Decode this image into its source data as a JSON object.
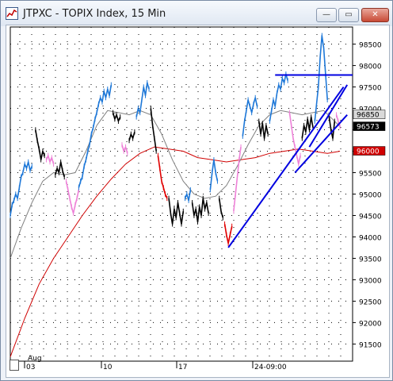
{
  "window": {
    "title": "JTPXC - TOPIX Index, 15 Min",
    "buttons": {
      "minimize": "—",
      "maximize": "▭",
      "close": "✕"
    }
  },
  "chart_data": {
    "type": "line",
    "symbol": "JTPXC",
    "ylim": [
      91100,
      98900
    ],
    "y_ticks": [
      98500,
      98000,
      97500,
      97000,
      96500,
      96000,
      95500,
      95000,
      94500,
      94000,
      93500,
      93000,
      92500,
      92000,
      91500
    ],
    "y_tick_labels": [
      "98500",
      "98000",
      "97500",
      "97000",
      "",
      "",
      "95500",
      "95000",
      "94500",
      "94000",
      "93500",
      "93000",
      "92500",
      "92000",
      "91500"
    ],
    "x_labels": [
      "Aug",
      "03",
      "10",
      "17",
      "24-09:00"
    ],
    "price_tags": [
      {
        "label": "96850",
        "value": 96850,
        "bg": "#d9d9d9",
        "fg": "#000000"
      },
      {
        "label": "96573",
        "value": 96573,
        "bg": "#000000",
        "fg": "#ffffff"
      },
      {
        "label": "96000",
        "value": 96000,
        "bg": "#d00000",
        "fg": "#ffffff"
      }
    ],
    "grid": true,
    "colors": {
      "up": "#1e78d8",
      "down": "#000000",
      "pink": "#ee82d8",
      "red": "#e00000",
      "gray_ma": "#808080",
      "red_ma": "#d00000",
      "trendline": "#0000e0"
    },
    "series": [
      {
        "color": "up",
        "values": [
          [
            0,
            94500
          ],
          [
            0.5,
            94750
          ],
          [
            1,
            94850
          ],
          [
            1.5,
            95000
          ],
          [
            2,
            94900
          ],
          [
            2.5,
            95150
          ],
          [
            3,
            95400
          ],
          [
            3.5,
            95500
          ],
          [
            4,
            95700
          ],
          [
            4.5,
            95600
          ],
          [
            5,
            95750
          ],
          [
            5.5,
            95550
          ],
          [
            6,
            95650
          ]
        ]
      },
      {
        "color": "down",
        "values": [
          [
            7,
            96500
          ],
          [
            7.5,
            96250
          ],
          [
            8,
            96050
          ],
          [
            8.5,
            95800
          ],
          [
            9,
            96000
          ],
          [
            9.5,
            95900
          ]
        ]
      },
      {
        "color": "pink",
        "values": [
          [
            10,
            95800
          ],
          [
            10.5,
            95900
          ],
          [
            11,
            95750
          ],
          [
            11.5,
            95850
          ],
          [
            12,
            95700
          ]
        ]
      },
      {
        "color": "down",
        "values": [
          [
            12.5,
            95450
          ],
          [
            13,
            95600
          ],
          [
            13.5,
            95500
          ],
          [
            14,
            95750
          ],
          [
            14.5,
            95550
          ],
          [
            15,
            95400
          ]
        ]
      },
      {
        "color": "pink",
        "values": [
          [
            15.5,
            95300
          ],
          [
            16,
            95100
          ],
          [
            16.5,
            94900
          ],
          [
            17,
            94700
          ],
          [
            17.5,
            94550
          ],
          [
            18,
            94750
          ],
          [
            18.5,
            94900
          ],
          [
            19,
            95100
          ]
        ]
      },
      {
        "color": "up",
        "values": [
          [
            19,
            95150
          ],
          [
            19.5,
            95300
          ],
          [
            20,
            95400
          ],
          [
            20.5,
            95650
          ],
          [
            21,
            95800
          ],
          [
            21.5,
            96000
          ],
          [
            22,
            96150
          ],
          [
            22.5,
            96400
          ],
          [
            23,
            96550
          ],
          [
            23.5,
            96750
          ],
          [
            24,
            96900
          ],
          [
            24.5,
            97100
          ],
          [
            25,
            97250
          ],
          [
            25.5,
            97150
          ],
          [
            26,
            97400
          ],
          [
            26.5,
            97250
          ],
          [
            27,
            97450
          ],
          [
            27.5,
            97300
          ],
          [
            28,
            97550
          ]
        ]
      },
      {
        "color": "down",
        "values": [
          [
            28.5,
            96900
          ],
          [
            29,
            96750
          ],
          [
            29.5,
            96850
          ],
          [
            30,
            96700
          ],
          [
            30.5,
            96800
          ]
        ]
      },
      {
        "color": "pink",
        "values": [
          [
            31,
            96150
          ],
          [
            31.5,
            96000
          ],
          [
            32,
            96100
          ],
          [
            32.5,
            95950
          ]
        ]
      },
      {
        "color": "down",
        "values": [
          [
            33,
            96250
          ],
          [
            33.5,
            96400
          ],
          [
            34,
            96300
          ],
          [
            34.5,
            96450
          ]
        ]
      },
      {
        "color": "up",
        "values": [
          [
            35,
            96800
          ],
          [
            35.5,
            97000
          ],
          [
            36,
            96900
          ],
          [
            36.5,
            97200
          ],
          [
            37,
            97500
          ],
          [
            37.5,
            97300
          ],
          [
            38,
            97600
          ],
          [
            38.5,
            97450
          ]
        ]
      },
      {
        "color": "down",
        "values": [
          [
            39,
            97000
          ],
          [
            39.5,
            96600
          ],
          [
            40,
            96300
          ],
          [
            40.5,
            96000
          ]
        ]
      },
      {
        "color": "red",
        "values": [
          [
            41,
            95900
          ],
          [
            41.5,
            95600
          ],
          [
            42,
            95300
          ],
          [
            42.5,
            95150
          ],
          [
            43,
            95000
          ],
          [
            43.5,
            94900
          ]
        ]
      },
      {
        "color": "down",
        "values": [
          [
            44,
            94900
          ],
          [
            44.5,
            94550
          ],
          [
            45,
            94300
          ],
          [
            45.5,
            94650
          ],
          [
            46,
            94450
          ],
          [
            46.5,
            94800
          ],
          [
            47,
            94550
          ],
          [
            47.5,
            94300
          ],
          [
            48,
            94600
          ]
        ]
      },
      {
        "color": "up",
        "values": [
          [
            48.5,
            94900
          ],
          [
            49,
            95000
          ],
          [
            49.5,
            94850
          ],
          [
            50,
            95100
          ]
        ]
      },
      {
        "color": "down",
        "values": [
          [
            50.5,
            94800
          ],
          [
            51,
            94500
          ],
          [
            51.5,
            94650
          ],
          [
            52,
            94350
          ],
          [
            52.5,
            94700
          ],
          [
            53,
            94500
          ],
          [
            53.5,
            94900
          ],
          [
            54,
            94650
          ],
          [
            54.5,
            94800
          ],
          [
            55,
            94550
          ]
        ]
      },
      {
        "color": "up",
        "values": [
          [
            55.5,
            95100
          ],
          [
            56,
            95500
          ],
          [
            56.5,
            95800
          ],
          [
            57,
            95500
          ],
          [
            57.5,
            95300
          ]
        ]
      },
      {
        "color": "down",
        "values": [
          [
            58,
            94900
          ],
          [
            58.5,
            94600
          ],
          [
            59,
            94450
          ]
        ]
      },
      {
        "color": "red",
        "values": [
          [
            59.5,
            94300
          ],
          [
            60,
            94050
          ],
          [
            60.5,
            93850
          ],
          [
            61,
            94050
          ],
          [
            61.5,
            94250
          ]
        ]
      },
      {
        "color": "pink",
        "values": [
          [
            62,
            94600
          ],
          [
            62.5,
            95000
          ],
          [
            63,
            95400
          ],
          [
            63.5,
            95800
          ],
          [
            64,
            96100
          ]
        ]
      },
      {
        "color": "up",
        "values": [
          [
            64.5,
            96350
          ],
          [
            65,
            96700
          ],
          [
            65.5,
            96950
          ],
          [
            66,
            97200
          ],
          [
            66.5,
            97050
          ],
          [
            67,
            96900
          ],
          [
            67.5,
            97100
          ],
          [
            68,
            97250
          ],
          [
            68.5,
            97050
          ]
        ]
      },
      {
        "color": "down",
        "values": [
          [
            69,
            96700
          ],
          [
            69.5,
            96400
          ],
          [
            70,
            96650
          ],
          [
            70.5,
            96300
          ],
          [
            71,
            96600
          ],
          [
            71.5,
            96400
          ]
        ]
      },
      {
        "color": "up",
        "values": [
          [
            72,
            96700
          ],
          [
            72.5,
            96950
          ],
          [
            73,
            97200
          ],
          [
            73.5,
            97050
          ],
          [
            74,
            97350
          ],
          [
            74.5,
            97550
          ],
          [
            75,
            97450
          ],
          [
            75.5,
            97700
          ],
          [
            76,
            97600
          ],
          [
            76.5,
            97800
          ],
          [
            77,
            97650
          ]
        ]
      },
      {
        "color": "pink",
        "values": [
          [
            77.5,
            96900
          ],
          [
            78,
            96600
          ],
          [
            78.5,
            96300
          ],
          [
            79,
            96100
          ],
          [
            79.5,
            95900
          ],
          [
            80,
            95700
          ],
          [
            80.5,
            95900
          ]
        ]
      },
      {
        "color": "down",
        "values": [
          [
            81,
            96300
          ],
          [
            81.5,
            96600
          ],
          [
            82,
            96450
          ],
          [
            82.5,
            96750
          ],
          [
            83,
            96500
          ],
          [
            83.5,
            96800
          ],
          [
            84,
            96550
          ]
        ]
      },
      {
        "color": "up",
        "values": [
          [
            84.5,
            96700
          ],
          [
            85,
            97100
          ],
          [
            85.5,
            97500
          ],
          [
            86,
            98200
          ],
          [
            86.5,
            98700
          ],
          [
            87,
            98400
          ],
          [
            87.5,
            97800
          ],
          [
            88,
            97200
          ]
        ]
      },
      {
        "color": "down",
        "values": [
          [
            88.5,
            96800
          ],
          [
            89,
            96500
          ],
          [
            89.5,
            96300
          ],
          [
            90,
            96700
          ]
        ]
      },
      {
        "color": "pink",
        "values": [
          [
            90.5,
            96850
          ],
          [
            91,
            96700
          ],
          [
            91.5,
            96573
          ]
        ]
      }
    ],
    "gray_ma": [
      [
        0,
        93500
      ],
      [
        3,
        94200
      ],
      [
        6,
        94800
      ],
      [
        9,
        95300
      ],
      [
        12,
        95500
      ],
      [
        15,
        95450
      ],
      [
        18,
        95500
      ],
      [
        21,
        96000
      ],
      [
        24,
        96600
      ],
      [
        27,
        96950
      ],
      [
        30,
        96900
      ],
      [
        33,
        96850
      ],
      [
        36,
        96950
      ],
      [
        39,
        96850
      ],
      [
        42,
        96400
      ],
      [
        45,
        95800
      ],
      [
        48,
        95300
      ],
      [
        51,
        95000
      ],
      [
        54,
        94900
      ],
      [
        57,
        94950
      ],
      [
        60,
        95200
      ],
      [
        63,
        95650
      ],
      [
        66,
        96150
      ],
      [
        69,
        96600
      ],
      [
        72,
        96850
      ],
      [
        75,
        96950
      ],
      [
        78,
        96900
      ],
      [
        81,
        96850
      ],
      [
        84,
        96900
      ],
      [
        87,
        96950
      ],
      [
        90,
        96700
      ],
      [
        91.5,
        96573
      ]
    ],
    "red_ma": [
      [
        0,
        91200
      ],
      [
        4,
        92100
      ],
      [
        8,
        92900
      ],
      [
        12,
        93500
      ],
      [
        16,
        94000
      ],
      [
        20,
        94500
      ],
      [
        24,
        94950
      ],
      [
        28,
        95350
      ],
      [
        32,
        95700
      ],
      [
        36,
        95950
      ],
      [
        40,
        96100
      ],
      [
        44,
        96050
      ],
      [
        48,
        96000
      ],
      [
        52,
        95850
      ],
      [
        56,
        95800
      ],
      [
        60,
        95750
      ],
      [
        64,
        95800
      ],
      [
        68,
        95850
      ],
      [
        72,
        95950
      ],
      [
        76,
        96000
      ],
      [
        80,
        96050
      ],
      [
        84,
        96000
      ],
      [
        88,
        95950
      ],
      [
        91.5,
        96000
      ]
    ],
    "trendlines": [
      {
        "from": [
          60.5,
          93750
        ],
        "to": [
          92.5,
          97500
        ]
      },
      {
        "from": [
          79,
          95500
        ],
        "to": [
          93.5,
          96850
        ]
      },
      {
        "from": [
          83,
          96100
        ],
        "to": [
          93.5,
          97550
        ]
      },
      {
        "from": [
          73.5,
          97780
        ],
        "to": [
          95,
          97780
        ]
      }
    ]
  }
}
